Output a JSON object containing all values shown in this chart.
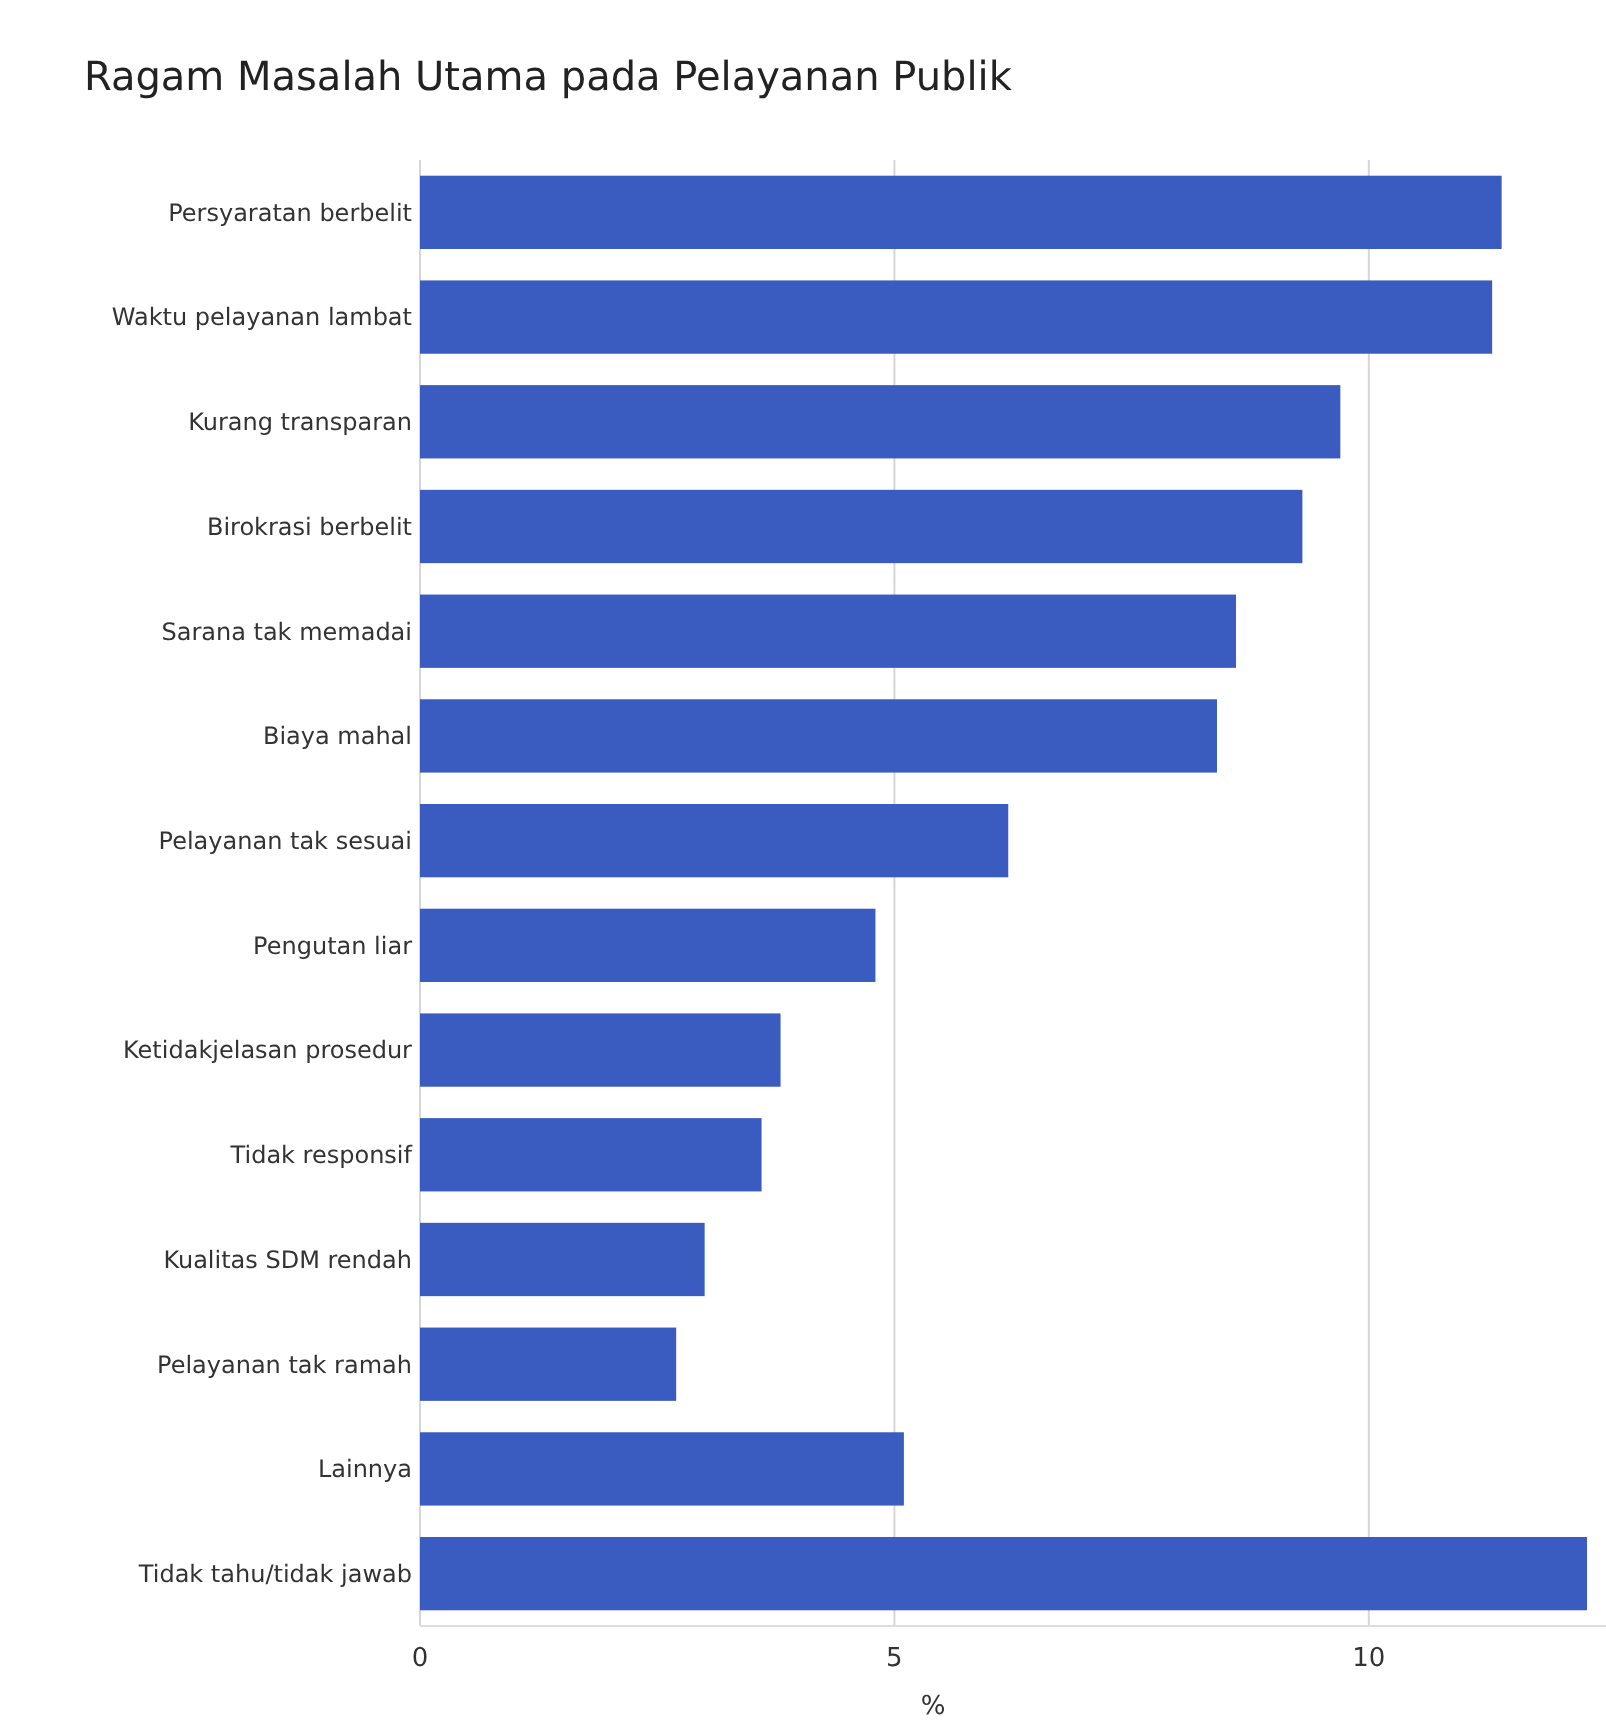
{
  "chart_data": {
    "type": "bar",
    "orientation": "horizontal",
    "title": "Ragam Masalah Utama pada Pelayanan Publik",
    "xlabel": "%",
    "categories": [
      "Persyaratan berbelit",
      "Waktu pelayanan lambat",
      "Kurang transparan",
      "Birokrasi berbelit",
      "Sarana tak memadai",
      "Biaya mahal",
      "Pelayanan tak sesuai",
      "Pengutan liar",
      "Ketidakjelasan prosedur",
      "Tidak responsif",
      "Kualitas SDM rendah",
      "Pelayanan tak ramah",
      "Lainnya",
      "Tidak tahu/tidak jawab"
    ],
    "values": [
      11.4,
      11.3,
      9.7,
      9.3,
      8.6,
      8.4,
      6.2,
      4.8,
      3.8,
      3.6,
      3.0,
      2.7,
      5.1,
      12.3
    ],
    "color": "#3a5bbf",
    "xlim": [
      0,
      12.5
    ],
    "xticks": [
      0,
      5,
      10
    ],
    "grid": "x"
  }
}
